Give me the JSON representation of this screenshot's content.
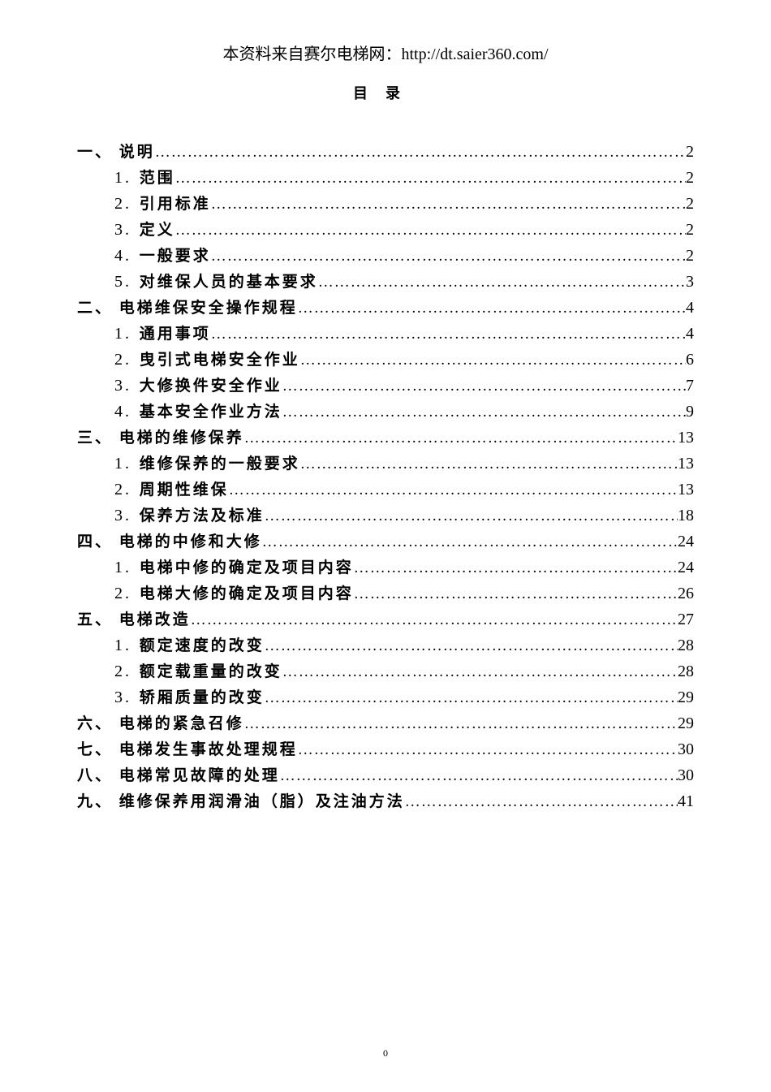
{
  "header": "本资料来自赛尔电梯网：http://dt.saier360.com/",
  "toc_title": "目录",
  "footer_page": "0",
  "toc": [
    {
      "level": 1,
      "prefix": "一、",
      "title": "说明",
      "page": "2"
    },
    {
      "level": 2,
      "prefix": "1.",
      "title": "范围",
      "page": "2"
    },
    {
      "level": 2,
      "prefix": "2.",
      "title": "引用标准",
      "page": "2"
    },
    {
      "level": 2,
      "prefix": "3.",
      "title": "定义",
      "page": "2"
    },
    {
      "level": 2,
      "prefix": "4.",
      "title": "一般要求",
      "page": "2"
    },
    {
      "level": 2,
      "prefix": "5.",
      "title": "对维保人员的基本要求",
      "page": "3"
    },
    {
      "level": 1,
      "prefix": "二、",
      "title": "电梯维保安全操作规程",
      "page": "4"
    },
    {
      "level": 2,
      "prefix": "1.",
      "title": "通用事项",
      "page": "4"
    },
    {
      "level": 2,
      "prefix": "2.",
      "title": "曳引式电梯安全作业",
      "page": "6"
    },
    {
      "level": 2,
      "prefix": "3.",
      "title": "大修换件安全作业",
      "page": "7"
    },
    {
      "level": 2,
      "prefix": "4.",
      "title": "基本安全作业方法",
      "page": "9"
    },
    {
      "level": 1,
      "prefix": "三、",
      "title": "电梯的维修保养",
      "page": "13"
    },
    {
      "level": 2,
      "prefix": "1.",
      "title": "维修保养的一般要求",
      "page": "13"
    },
    {
      "level": 2,
      "prefix": "2.",
      "title": "周期性维保",
      "page": "13"
    },
    {
      "level": 2,
      "prefix": "3.",
      "title": "保养方法及标准",
      "page": "18"
    },
    {
      "level": 1,
      "prefix": "四、",
      "title": "电梯的中修和大修",
      "page": "24"
    },
    {
      "level": 2,
      "prefix": "1.",
      "title": "电梯中修的确定及项目内容",
      "page": "24"
    },
    {
      "level": 2,
      "prefix": "2.",
      "title": "电梯大修的确定及项目内容",
      "page": "26"
    },
    {
      "level": 1,
      "prefix": "五、",
      "title": "电梯改造",
      "page": "27"
    },
    {
      "level": 2,
      "prefix": "1.",
      "title": "额定速度的改变",
      "page": "28"
    },
    {
      "level": 2,
      "prefix": "2.",
      "title": "额定载重量的改变",
      "page": "28"
    },
    {
      "level": 2,
      "prefix": "3.",
      "title": "轿厢质量的改变",
      "page": "29"
    },
    {
      "level": 1,
      "prefix": "六、",
      "title": "电梯的紧急召修",
      "page": "29"
    },
    {
      "level": 1,
      "prefix": "七、",
      "title": "电梯发生事故处理规程",
      "page": "30"
    },
    {
      "level": 1,
      "prefix": "八、",
      "title": "电梯常见故障的处理",
      "page": "30"
    },
    {
      "level": 1,
      "prefix": "九、",
      "title": "维修保养用润滑油（脂）及注油方法",
      "page": "41"
    }
  ]
}
